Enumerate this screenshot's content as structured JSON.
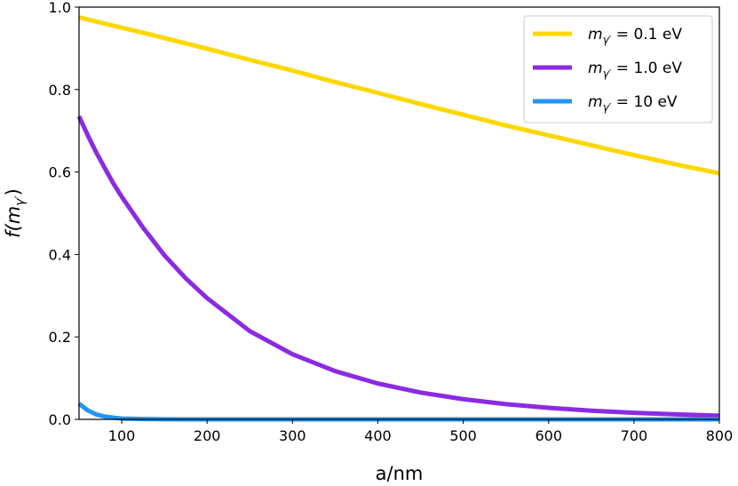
{
  "chart_data": {
    "type": "line",
    "xlabel": "a/nm",
    "ylabel": "f(m_γ′)",
    "ylabel_parts": {
      "base": "f(m",
      "sub": "γ′",
      "close": ")"
    },
    "xlim": [
      50,
      800
    ],
    "ylim": [
      0.0,
      1.0
    ],
    "xticks": [
      100,
      200,
      300,
      400,
      500,
      600,
      700,
      800
    ],
    "yticks": [
      "0.0",
      "0.2",
      "0.4",
      "0.6",
      "0.8",
      "1.0"
    ],
    "grid": false,
    "legend_position": "top-right",
    "x": [
      50,
      60,
      70,
      80,
      90,
      100,
      125,
      150,
      175,
      200,
      250,
      300,
      350,
      400,
      450,
      500,
      550,
      600,
      650,
      700,
      750,
      800
    ],
    "series": [
      {
        "name": "m_γ′ = 0.1 eV",
        "legend": {
          "m": "m",
          "sub": "γ′",
          "rest": " = 0.1 eV"
        },
        "color": "#FFD700",
        "values": [
          0.975,
          0.97,
          0.965,
          0.96,
          0.955,
          0.95,
          0.938,
          0.925,
          0.912,
          0.899,
          0.872,
          0.846,
          0.818,
          0.792,
          0.765,
          0.739,
          0.713,
          0.689,
          0.665,
          0.641,
          0.618,
          0.597
        ]
      },
      {
        "name": "m_γ′ = 1.0 eV",
        "legend": {
          "m": "m",
          "sub": "γ′",
          "rest": " = 1.0 eV"
        },
        "color": "#8A2BE2",
        "values": [
          0.735,
          0.69,
          0.648,
          0.61,
          0.573,
          0.54,
          0.465,
          0.398,
          0.342,
          0.294,
          0.214,
          0.158,
          0.117,
          0.087,
          0.065,
          0.049,
          0.037,
          0.028,
          0.021,
          0.016,
          0.012,
          0.009
        ]
      },
      {
        "name": "m_γ′ = 10 eV",
        "legend": {
          "m": "m",
          "sub": "γ′",
          "rest": " = 10 eV"
        },
        "color": "#2196F3",
        "values": [
          0.038,
          0.022,
          0.012,
          0.007,
          0.004,
          0.002,
          0.0008,
          0.0003,
          0.0001,
          0.0,
          0.0,
          0.0,
          0.0,
          0.0,
          0.0,
          0.0,
          0.0,
          0.0,
          0.0,
          0.0,
          0.0,
          0.0
        ]
      }
    ]
  }
}
